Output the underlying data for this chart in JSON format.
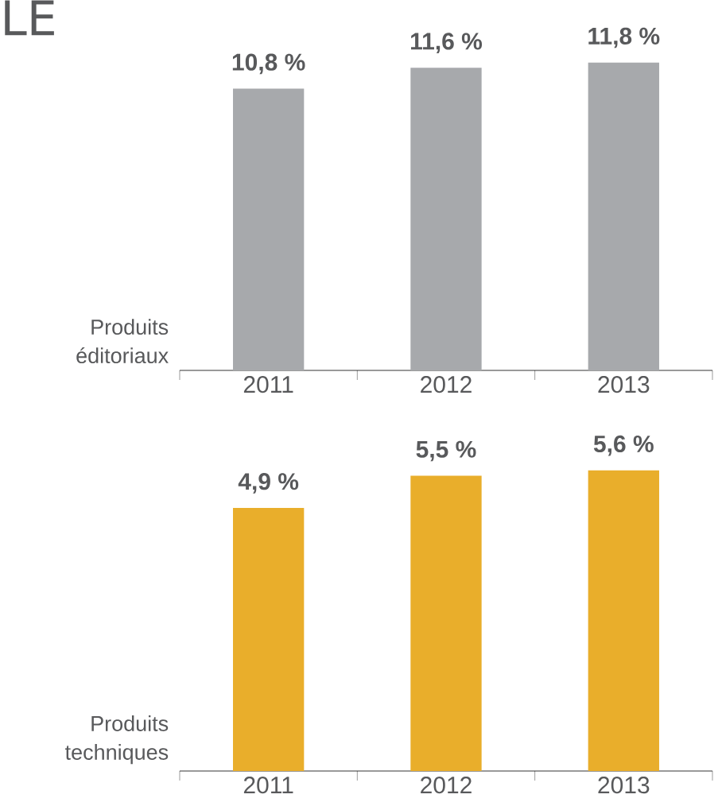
{
  "chart_data": [
    {
      "type": "bar",
      "title": "LE",
      "ylabel": "Produits éditoriaux",
      "categories": [
        "2011",
        "2012",
        "2013"
      ],
      "values": [
        10.8,
        11.6,
        11.8
      ],
      "value_labels": [
        "10,8 %",
        "11,6 %",
        "11,8 %"
      ],
      "color": "#a7a9ac",
      "tick_labels": "x"
    },
    {
      "type": "bar",
      "ylabel": "Produits techniques",
      "categories": [
        "2011",
        "2012",
        "2013"
      ],
      "values": [
        4.9,
        5.5,
        5.6
      ],
      "value_labels": [
        "4,9 %",
        "5,5 %",
        "5,6 %"
      ],
      "color": "#e9ae2b",
      "tick_labels": "x"
    }
  ]
}
